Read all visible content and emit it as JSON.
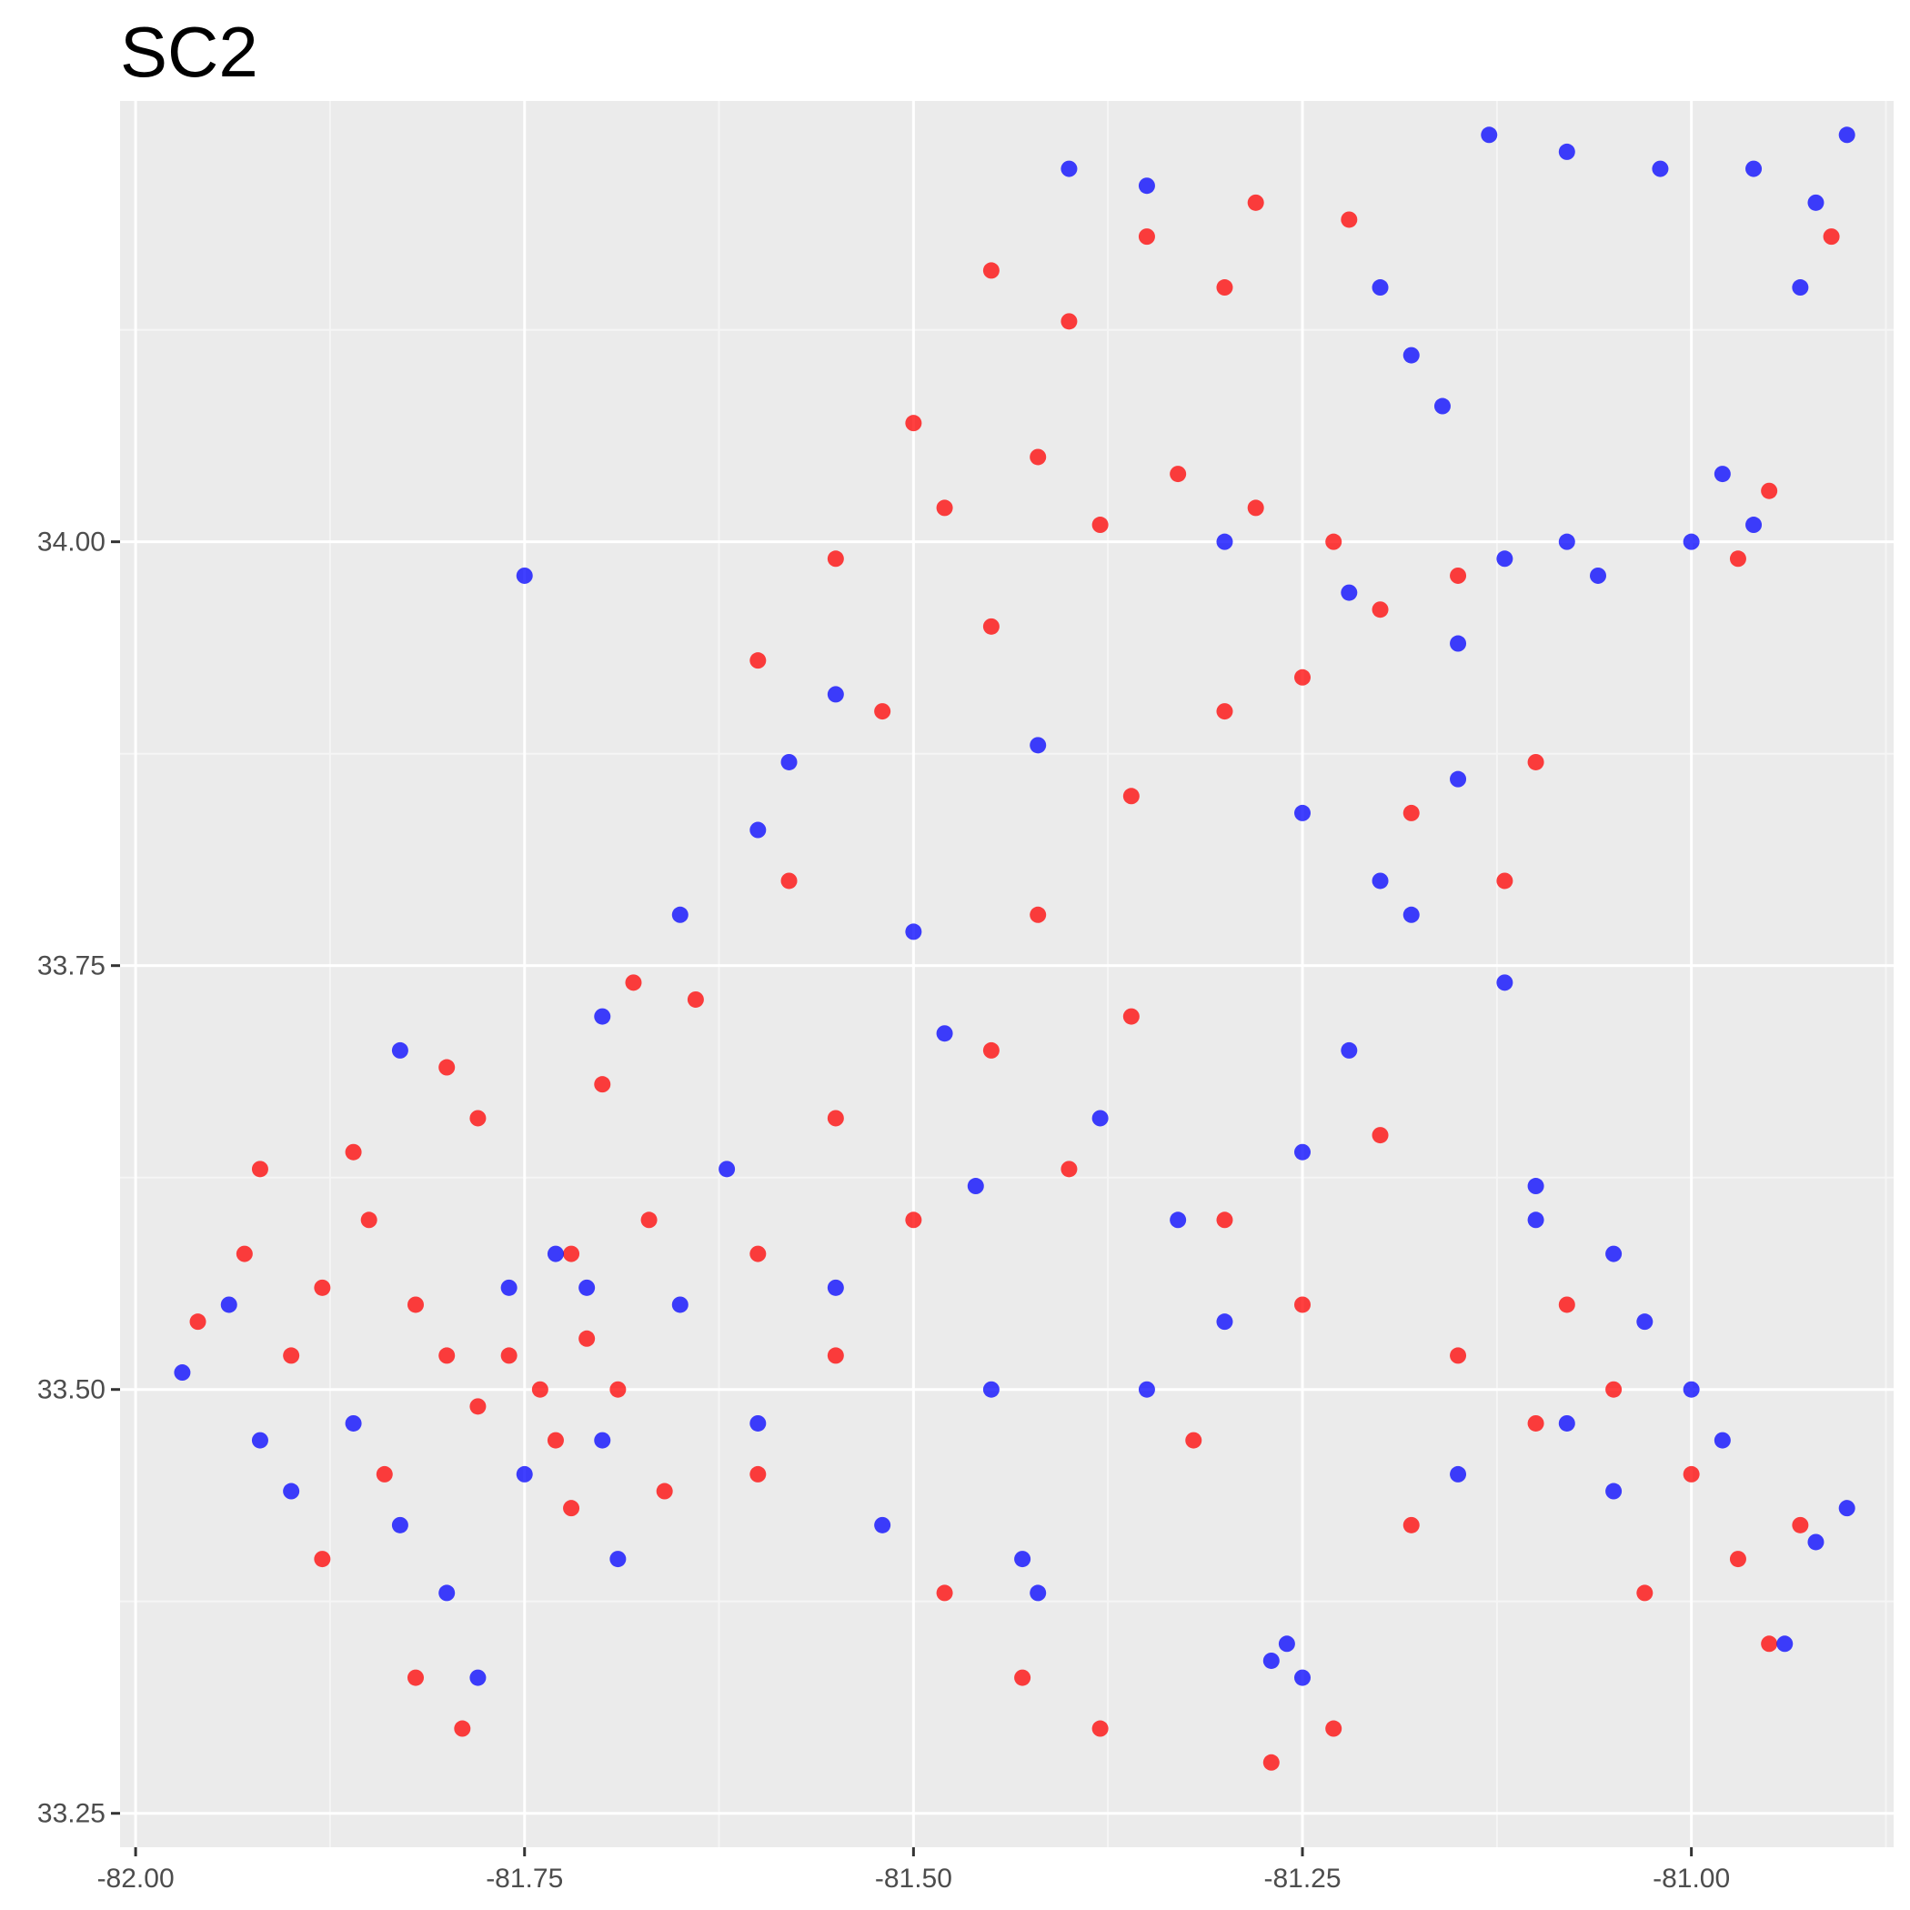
{
  "chart_data": {
    "type": "scatter",
    "title": "SC2",
    "xlabel": "",
    "ylabel": "",
    "xlim": [
      -82.01,
      -80.87
    ],
    "ylim": [
      33.23,
      34.26
    ],
    "x_ticks": [
      -82.0,
      -81.75,
      -81.5,
      -81.25,
      -81.0
    ],
    "x_tick_labels": [
      "-82.00",
      "-81.75",
      "-81.50",
      "-81.25",
      "-81.00"
    ],
    "y_ticks": [
      33.25,
      33.5,
      33.75,
      34.0
    ],
    "y_tick_labels": [
      "33.25",
      "33.50",
      "33.75",
      "34.00"
    ],
    "grid": true,
    "legend": "none",
    "colors": {
      "panel_background": "#ebebeb",
      "grid_major": "#ffffff",
      "grid_minor": "#f5f5f5",
      "tick_mark": "#333333",
      "point_a": "#ff0000",
      "point_b": "#0000ff"
    },
    "series": [
      {
        "color": "#ff0000",
        "points": [
          [
            -81.96,
            33.54
          ],
          [
            -81.93,
            33.58
          ],
          [
            -81.9,
            33.52
          ],
          [
            -81.88,
            33.56
          ],
          [
            -81.85,
            33.6
          ],
          [
            -81.82,
            33.55
          ],
          [
            -81.8,
            33.52
          ],
          [
            -81.78,
            33.49
          ],
          [
            -81.76,
            33.52
          ],
          [
            -81.74,
            33.5
          ],
          [
            -81.73,
            33.47
          ],
          [
            -81.71,
            33.53
          ],
          [
            -81.69,
            33.5
          ],
          [
            -81.66,
            33.44
          ],
          [
            -81.72,
            33.43
          ],
          [
            -81.84,
            33.45
          ],
          [
            -81.88,
            33.4
          ],
          [
            -81.82,
            33.33
          ],
          [
            -81.79,
            33.3
          ],
          [
            -81.86,
            33.64
          ],
          [
            -81.78,
            33.66
          ],
          [
            -81.7,
            33.68
          ],
          [
            -81.64,
            33.73
          ],
          [
            -81.58,
            33.8
          ],
          [
            -81.55,
            33.66
          ],
          [
            -81.5,
            33.6
          ],
          [
            -81.45,
            33.7
          ],
          [
            -81.4,
            33.63
          ],
          [
            -81.36,
            33.72
          ],
          [
            -81.3,
            33.6
          ],
          [
            -81.25,
            33.55
          ],
          [
            -81.2,
            33.65
          ],
          [
            -81.15,
            33.52
          ],
          [
            -81.1,
            33.48
          ],
          [
            -81.05,
            33.5
          ],
          [
            -81.0,
            33.45
          ],
          [
            -80.97,
            33.4
          ],
          [
            -80.93,
            33.42
          ],
          [
            -80.95,
            33.35
          ],
          [
            -81.03,
            33.38
          ],
          [
            -81.6,
            33.45
          ],
          [
            -81.55,
            33.52
          ],
          [
            -81.48,
            33.38
          ],
          [
            -81.43,
            33.33
          ],
          [
            -81.38,
            33.3
          ],
          [
            -81.27,
            33.28
          ],
          [
            -81.23,
            33.3
          ],
          [
            -81.18,
            33.42
          ],
          [
            -81.6,
            33.93
          ],
          [
            -81.55,
            33.99
          ],
          [
            -81.48,
            34.02
          ],
          [
            -81.42,
            34.05
          ],
          [
            -81.38,
            34.01
          ],
          [
            -81.33,
            34.04
          ],
          [
            -81.28,
            34.02
          ],
          [
            -81.23,
            34.0
          ],
          [
            -81.2,
            33.96
          ],
          [
            -81.15,
            33.98
          ],
          [
            -81.25,
            33.92
          ],
          [
            -81.3,
            33.9
          ],
          [
            -81.45,
            33.95
          ],
          [
            -81.52,
            33.9
          ],
          [
            -81.4,
            34.13
          ],
          [
            -81.35,
            34.18
          ],
          [
            -81.28,
            34.2
          ],
          [
            -81.22,
            34.19
          ],
          [
            -81.3,
            34.15
          ],
          [
            -81.45,
            34.16
          ],
          [
            -81.5,
            34.07
          ],
          [
            -81.18,
            33.84
          ],
          [
            -81.12,
            33.8
          ],
          [
            -81.1,
            33.87
          ],
          [
            -80.97,
            33.99
          ],
          [
            -80.95,
            34.03
          ],
          [
            -80.91,
            34.18
          ],
          [
            -81.6,
            33.58
          ],
          [
            -81.67,
            33.6
          ],
          [
            -81.32,
            33.47
          ],
          [
            -81.08,
            33.55
          ],
          [
            -81.36,
            33.85
          ],
          [
            -81.42,
            33.78
          ],
          [
            -81.68,
            33.74
          ],
          [
            -81.8,
            33.69
          ],
          [
            -81.92,
            33.63
          ],
          [
            -81.72,
            33.58
          ]
        ]
      },
      {
        "color": "#0000ff",
        "points": [
          [
            -81.97,
            33.51
          ],
          [
            -81.94,
            33.55
          ],
          [
            -81.92,
            33.47
          ],
          [
            -81.9,
            33.44
          ],
          [
            -81.86,
            33.48
          ],
          [
            -81.83,
            33.42
          ],
          [
            -81.8,
            33.38
          ],
          [
            -81.78,
            33.33
          ],
          [
            -81.76,
            33.56
          ],
          [
            -81.73,
            33.58
          ],
          [
            -81.71,
            33.56
          ],
          [
            -81.69,
            33.4
          ],
          [
            -81.75,
            33.45
          ],
          [
            -81.83,
            33.7
          ],
          [
            -81.7,
            33.72
          ],
          [
            -81.65,
            33.78
          ],
          [
            -81.6,
            33.83
          ],
          [
            -81.58,
            33.87
          ],
          [
            -81.55,
            33.91
          ],
          [
            -81.5,
            33.77
          ],
          [
            -81.46,
            33.62
          ],
          [
            -81.43,
            33.4
          ],
          [
            -81.42,
            33.38
          ],
          [
            -81.38,
            33.66
          ],
          [
            -81.35,
            33.5
          ],
          [
            -81.3,
            33.54
          ],
          [
            -81.27,
            33.34
          ],
          [
            -81.26,
            33.35
          ],
          [
            -81.25,
            33.33
          ],
          [
            -81.22,
            33.7
          ],
          [
            -81.18,
            33.78
          ],
          [
            -81.12,
            33.74
          ],
          [
            -81.1,
            33.62
          ],
          [
            -81.08,
            33.48
          ],
          [
            -81.05,
            33.44
          ],
          [
            -81.0,
            33.5
          ],
          [
            -80.98,
            33.47
          ],
          [
            -80.9,
            33.43
          ],
          [
            -80.92,
            33.41
          ],
          [
            -81.15,
            33.45
          ],
          [
            -81.6,
            33.48
          ],
          [
            -81.52,
            33.42
          ],
          [
            -81.3,
            34.0
          ],
          [
            -81.22,
            33.97
          ],
          [
            -81.15,
            33.94
          ],
          [
            -81.12,
            33.99
          ],
          [
            -81.08,
            34.0
          ],
          [
            -81.06,
            33.98
          ],
          [
            -81.16,
            34.08
          ],
          [
            -81.18,
            34.11
          ],
          [
            -81.2,
            34.15
          ],
          [
            -81.35,
            34.21
          ],
          [
            -81.4,
            34.22
          ],
          [
            -81.13,
            34.24
          ],
          [
            -81.08,
            34.23
          ],
          [
            -81.02,
            34.22
          ],
          [
            -80.96,
            34.22
          ],
          [
            -80.92,
            34.2
          ],
          [
            -80.9,
            34.24
          ],
          [
            -80.93,
            34.15
          ],
          [
            -80.98,
            34.04
          ],
          [
            -80.96,
            34.01
          ],
          [
            -81.0,
            34.0
          ],
          [
            -81.25,
            33.84
          ],
          [
            -81.2,
            33.8
          ],
          [
            -81.15,
            33.86
          ],
          [
            -81.42,
            33.88
          ],
          [
            -81.48,
            33.71
          ],
          [
            -81.62,
            33.63
          ],
          [
            -81.65,
            33.55
          ],
          [
            -81.7,
            33.47
          ],
          [
            -81.55,
            33.56
          ],
          [
            -81.45,
            33.5
          ],
          [
            -81.33,
            33.6
          ],
          [
            -81.25,
            33.64
          ],
          [
            -81.1,
            33.6
          ],
          [
            -81.03,
            33.54
          ],
          [
            -80.94,
            33.35
          ],
          [
            -81.05,
            33.58
          ],
          [
            -81.75,
            33.98
          ]
        ]
      }
    ]
  }
}
